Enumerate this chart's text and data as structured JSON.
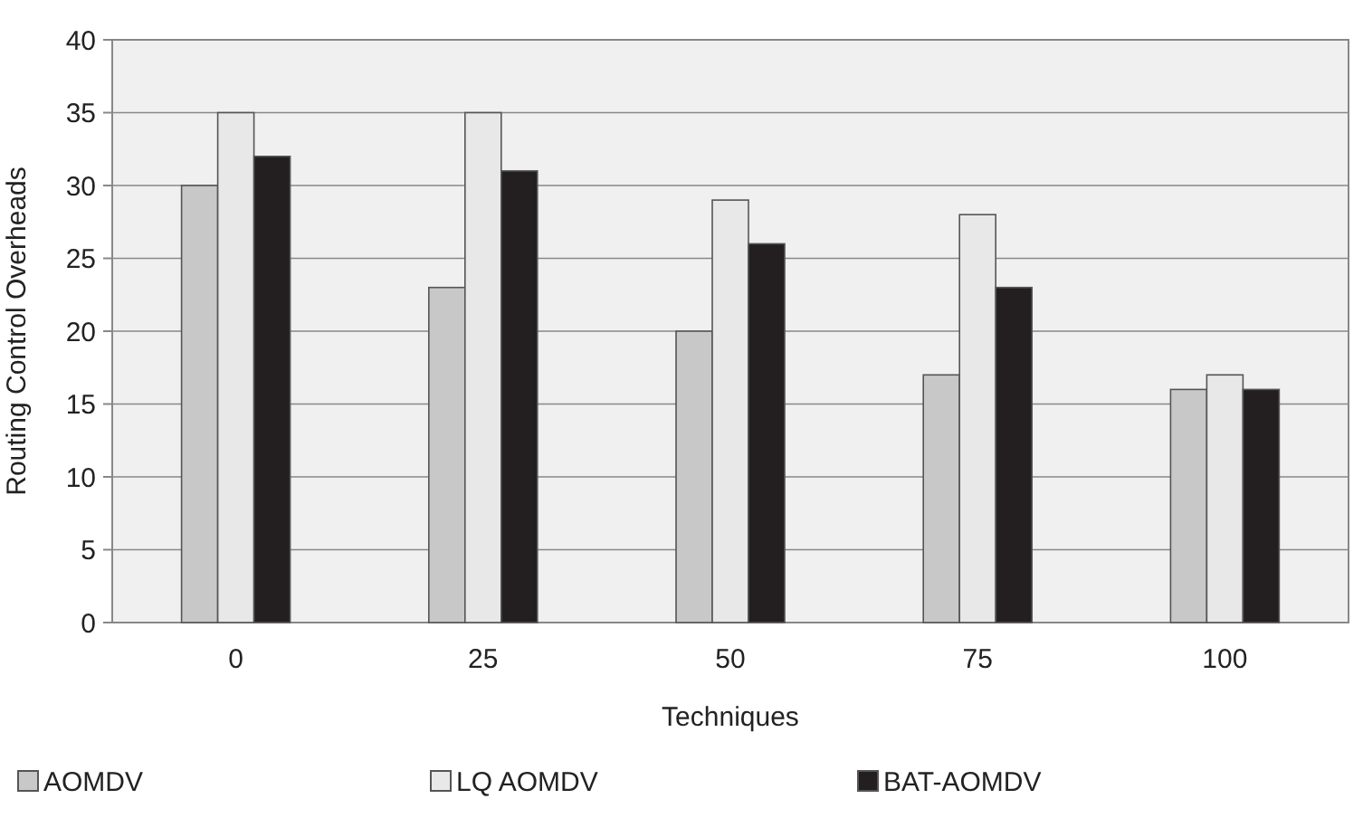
{
  "chart_data": {
    "type": "bar",
    "xlabel": "Techniques",
    "ylabel": "Routing Control Overheads",
    "categories": [
      "0",
      "25",
      "50",
      "75",
      "100"
    ],
    "series": [
      {
        "name": "AOMDV",
        "color": "#c8c8c8",
        "values": [
          30,
          23,
          20,
          17,
          16
        ]
      },
      {
        "name": "LQ AOMDV",
        "color": "#e8e8e8",
        "values": [
          35,
          35,
          29,
          28,
          17
        ]
      },
      {
        "name": "BAT-AOMDV",
        "color": "#231f20",
        "values": [
          32,
          31,
          26,
          23,
          16
        ]
      }
    ],
    "ylim": [
      0,
      40
    ],
    "yticks": [
      0,
      5,
      10,
      15,
      20,
      25,
      30,
      35,
      40
    ],
    "grid": "y",
    "legend": "bottom"
  }
}
